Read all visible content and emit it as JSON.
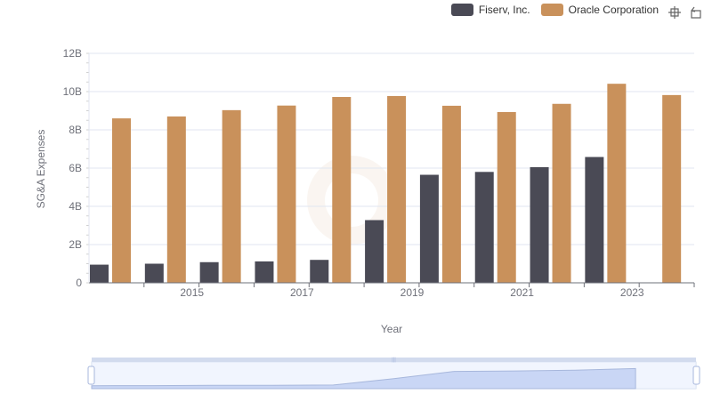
{
  "legend": [
    {
      "name": "Fiserv, Inc.",
      "color": "#4a4a55"
    },
    {
      "name": "Oracle Corporation",
      "color": "#c9915b"
    }
  ],
  "toolbox": {
    "zoom_icon": "zoom-icon",
    "restore_icon": "restore-icon"
  },
  "chart_data": {
    "type": "bar",
    "x": [
      2014,
      2015,
      2016,
      2017,
      2018,
      2019,
      2020,
      2021,
      2022,
      2023,
      2024
    ],
    "x_tick_labels": [
      "2015",
      "2017",
      "2019",
      "2021",
      "2023"
    ],
    "y_tick_labels": [
      "0",
      "2B",
      "4B",
      "6B",
      "8B",
      "10B",
      "12B"
    ],
    "series": [
      {
        "name": "Fiserv, Inc.",
        "color": "#4a4a55",
        "values": [
          0.95,
          1.0,
          1.08,
          1.12,
          1.2,
          3.28,
          5.65,
          5.8,
          6.05,
          6.58,
          null
        ]
      },
      {
        "name": "Oracle Corporation",
        "color": "#c9915b",
        "values": [
          8.6,
          8.7,
          9.03,
          9.27,
          9.72,
          9.77,
          9.26,
          8.93,
          9.36,
          10.41,
          9.82
        ]
      }
    ],
    "xlabel": "Year",
    "ylabel": "SG&A Expenses",
    "ylim": [
      0,
      12
    ],
    "unit": "billion",
    "grid": true,
    "legend_position": "top-right",
    "data_zoom": true
  }
}
